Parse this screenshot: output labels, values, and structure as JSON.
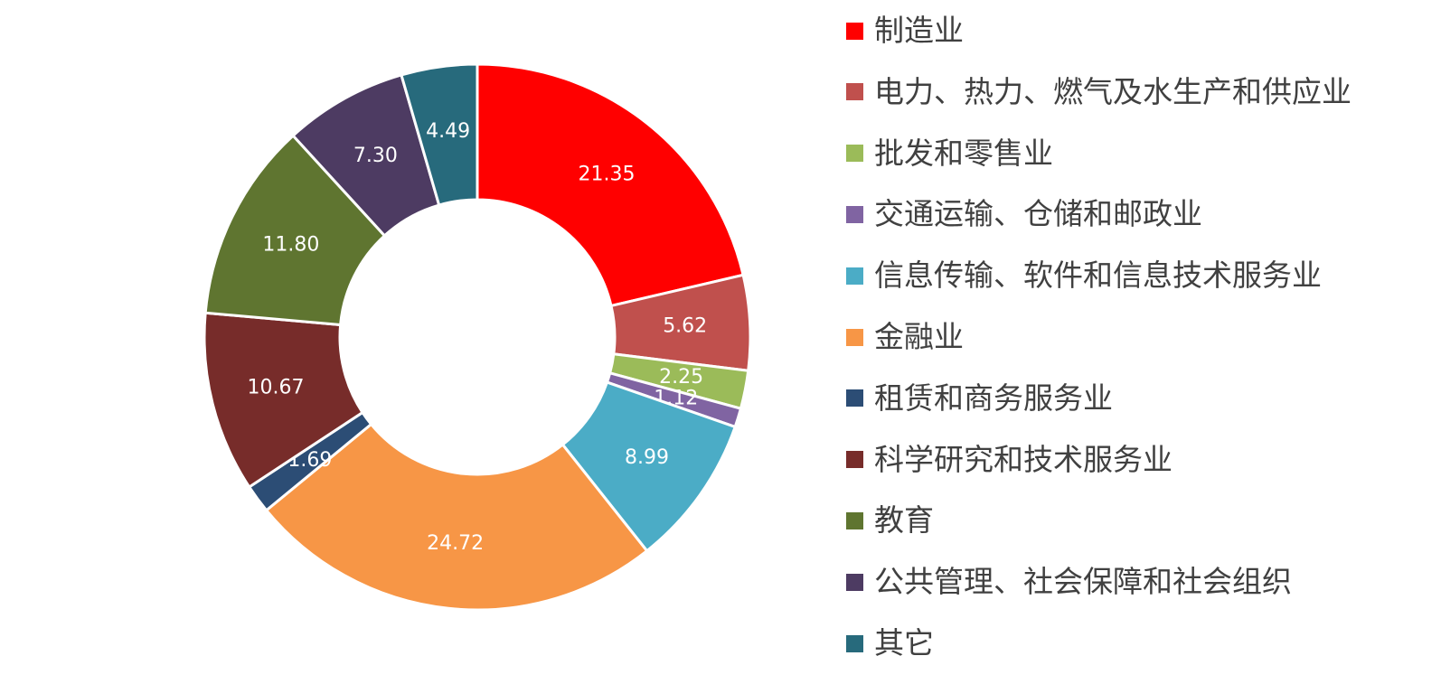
{
  "chart_data": {
    "type": "pie",
    "categories": [
      "制造业",
      "电力、热力、燃气及水生产和供应业",
      "批发和零售业",
      "交通运输、仓储和邮政业",
      "信息传输、软件和信息技术服务业",
      "金融业",
      "租赁和商务服务业",
      "科学研究和技术服务业",
      "教育",
      "公共管理、社会保障和社会组织",
      "其它"
    ],
    "values": [
      21.35,
      5.62,
      2.25,
      1.12,
      8.99,
      24.72,
      1.69,
      10.67,
      11.8,
      7.3,
      4.49
    ],
    "data_labels": [
      "21.35",
      "5.62",
      "2.25",
      "1.12",
      "8.99",
      "24.72",
      "1.69",
      "10.67",
      "11.80",
      "7.30",
      "4.49"
    ],
    "colors": [
      "#ff0000",
      "#c0504d",
      "#9bbb59",
      "#8064a2",
      "#4bacc6",
      "#f79646",
      "#2c4d75",
      "#772c2a",
      "#5f7530",
      "#4d3b62",
      "#276a7c"
    ],
    "donut": true,
    "start": "12 o'clock",
    "direction": "clockwise",
    "legend_position": "right"
  }
}
